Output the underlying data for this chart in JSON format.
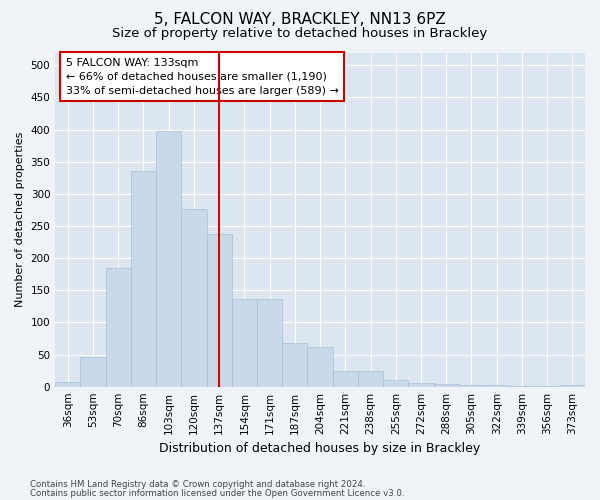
{
  "title": "5, FALCON WAY, BRACKLEY, NN13 6PZ",
  "subtitle": "Size of property relative to detached houses in Brackley",
  "xlabel": "Distribution of detached houses by size in Brackley",
  "ylabel": "Number of detached properties",
  "categories": [
    "36sqm",
    "53sqm",
    "70sqm",
    "86sqm",
    "103sqm",
    "120sqm",
    "137sqm",
    "154sqm",
    "171sqm",
    "187sqm",
    "204sqm",
    "221sqm",
    "238sqm",
    "255sqm",
    "272sqm",
    "288sqm",
    "305sqm",
    "322sqm",
    "339sqm",
    "356sqm",
    "373sqm"
  ],
  "values": [
    8,
    46,
    184,
    335,
    398,
    276,
    237,
    136,
    136,
    68,
    61,
    24,
    24,
    10,
    6,
    4,
    3,
    2,
    1,
    1,
    3
  ],
  "bar_color": "#c9d9ea",
  "bar_edgecolor": "#a8c0d6",
  "property_line_x": 6.0,
  "property_line_color": "#cc0000",
  "annotation_line1": "5 FALCON WAY: 133sqm",
  "annotation_line2": "← 66% of detached houses are smaller (1,190)",
  "annotation_line3": "33% of semi-detached houses are larger (589) →",
  "annotation_box_color": "#cc0000",
  "ylim": [
    0,
    520
  ],
  "yticks": [
    0,
    50,
    100,
    150,
    200,
    250,
    300,
    350,
    400,
    450,
    500
  ],
  "plot_bg_color": "#dce6f0",
  "fig_bg_color": "#f0f4f8",
  "grid_color": "#ffffff",
  "footer_line1": "Contains HM Land Registry data © Crown copyright and database right 2024.",
  "footer_line2": "Contains public sector information licensed under the Open Government Licence v3.0.",
  "title_fontsize": 11,
  "subtitle_fontsize": 9.5,
  "ylabel_fontsize": 8,
  "xlabel_fontsize": 9,
  "tick_fontsize": 7.5,
  "annotation_fontsize": 8,
  "footer_fontsize": 6.2
}
